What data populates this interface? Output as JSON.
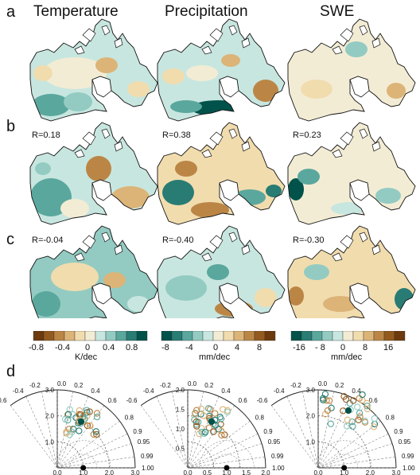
{
  "columns": [
    "Temperature",
    "Precipitation",
    "SWE"
  ],
  "row_labels": [
    "a",
    "b",
    "c",
    "d"
  ],
  "correlations": {
    "b": [
      "R=0.18",
      "R=0.38",
      "R=0.23"
    ],
    "c": [
      "R=-0.04",
      "R=-0.40",
      "R=-0.30"
    ]
  },
  "colorbars": [
    {
      "ticks": [
        "-0.8",
        "-0.4",
        "0",
        "0.4",
        "0.8"
      ],
      "unit": "K/dec"
    },
    {
      "ticks": [
        "-8",
        "-4",
        "0",
        "4",
        "8"
      ],
      "unit": "mm/dec"
    },
    {
      "ticks": [
        "-16",
        "- 8",
        "0",
        "8",
        "16"
      ],
      "unit": "mm/dec"
    }
  ],
  "palette": [
    "#00524a",
    "#287c74",
    "#5aa79d",
    "#93cbc2",
    "#c8e6e0",
    "#f3ecd5",
    "#f1dcae",
    "#dcb477",
    "#bb8645",
    "#935a1f",
    "#6c3a0d"
  ],
  "taylor": {
    "corr_ticks": [
      "-0.6",
      "-0.4",
      "-0.2",
      "0.0",
      "0.2",
      "0.4",
      "0.6",
      "0.8",
      "0.9",
      "0.95",
      "0.99",
      "1.00"
    ],
    "panels": [
      {
        "std_labels": [
          "3.0",
          "2.0",
          "1.0",
          "0.0",
          "1.0",
          "2.0",
          "3.0"
        ]
      },
      {
        "std_labels": [
          "2.0",
          "1.5",
          "1.0",
          "0.5",
          "0.0",
          "0.5",
          "1.0",
          "1.5",
          "2.0"
        ]
      },
      {
        "std_labels": [
          "3.0",
          "2.0",
          "1.0",
          "0.0",
          "1.0",
          "2.0",
          "3.0"
        ]
      }
    ]
  }
}
